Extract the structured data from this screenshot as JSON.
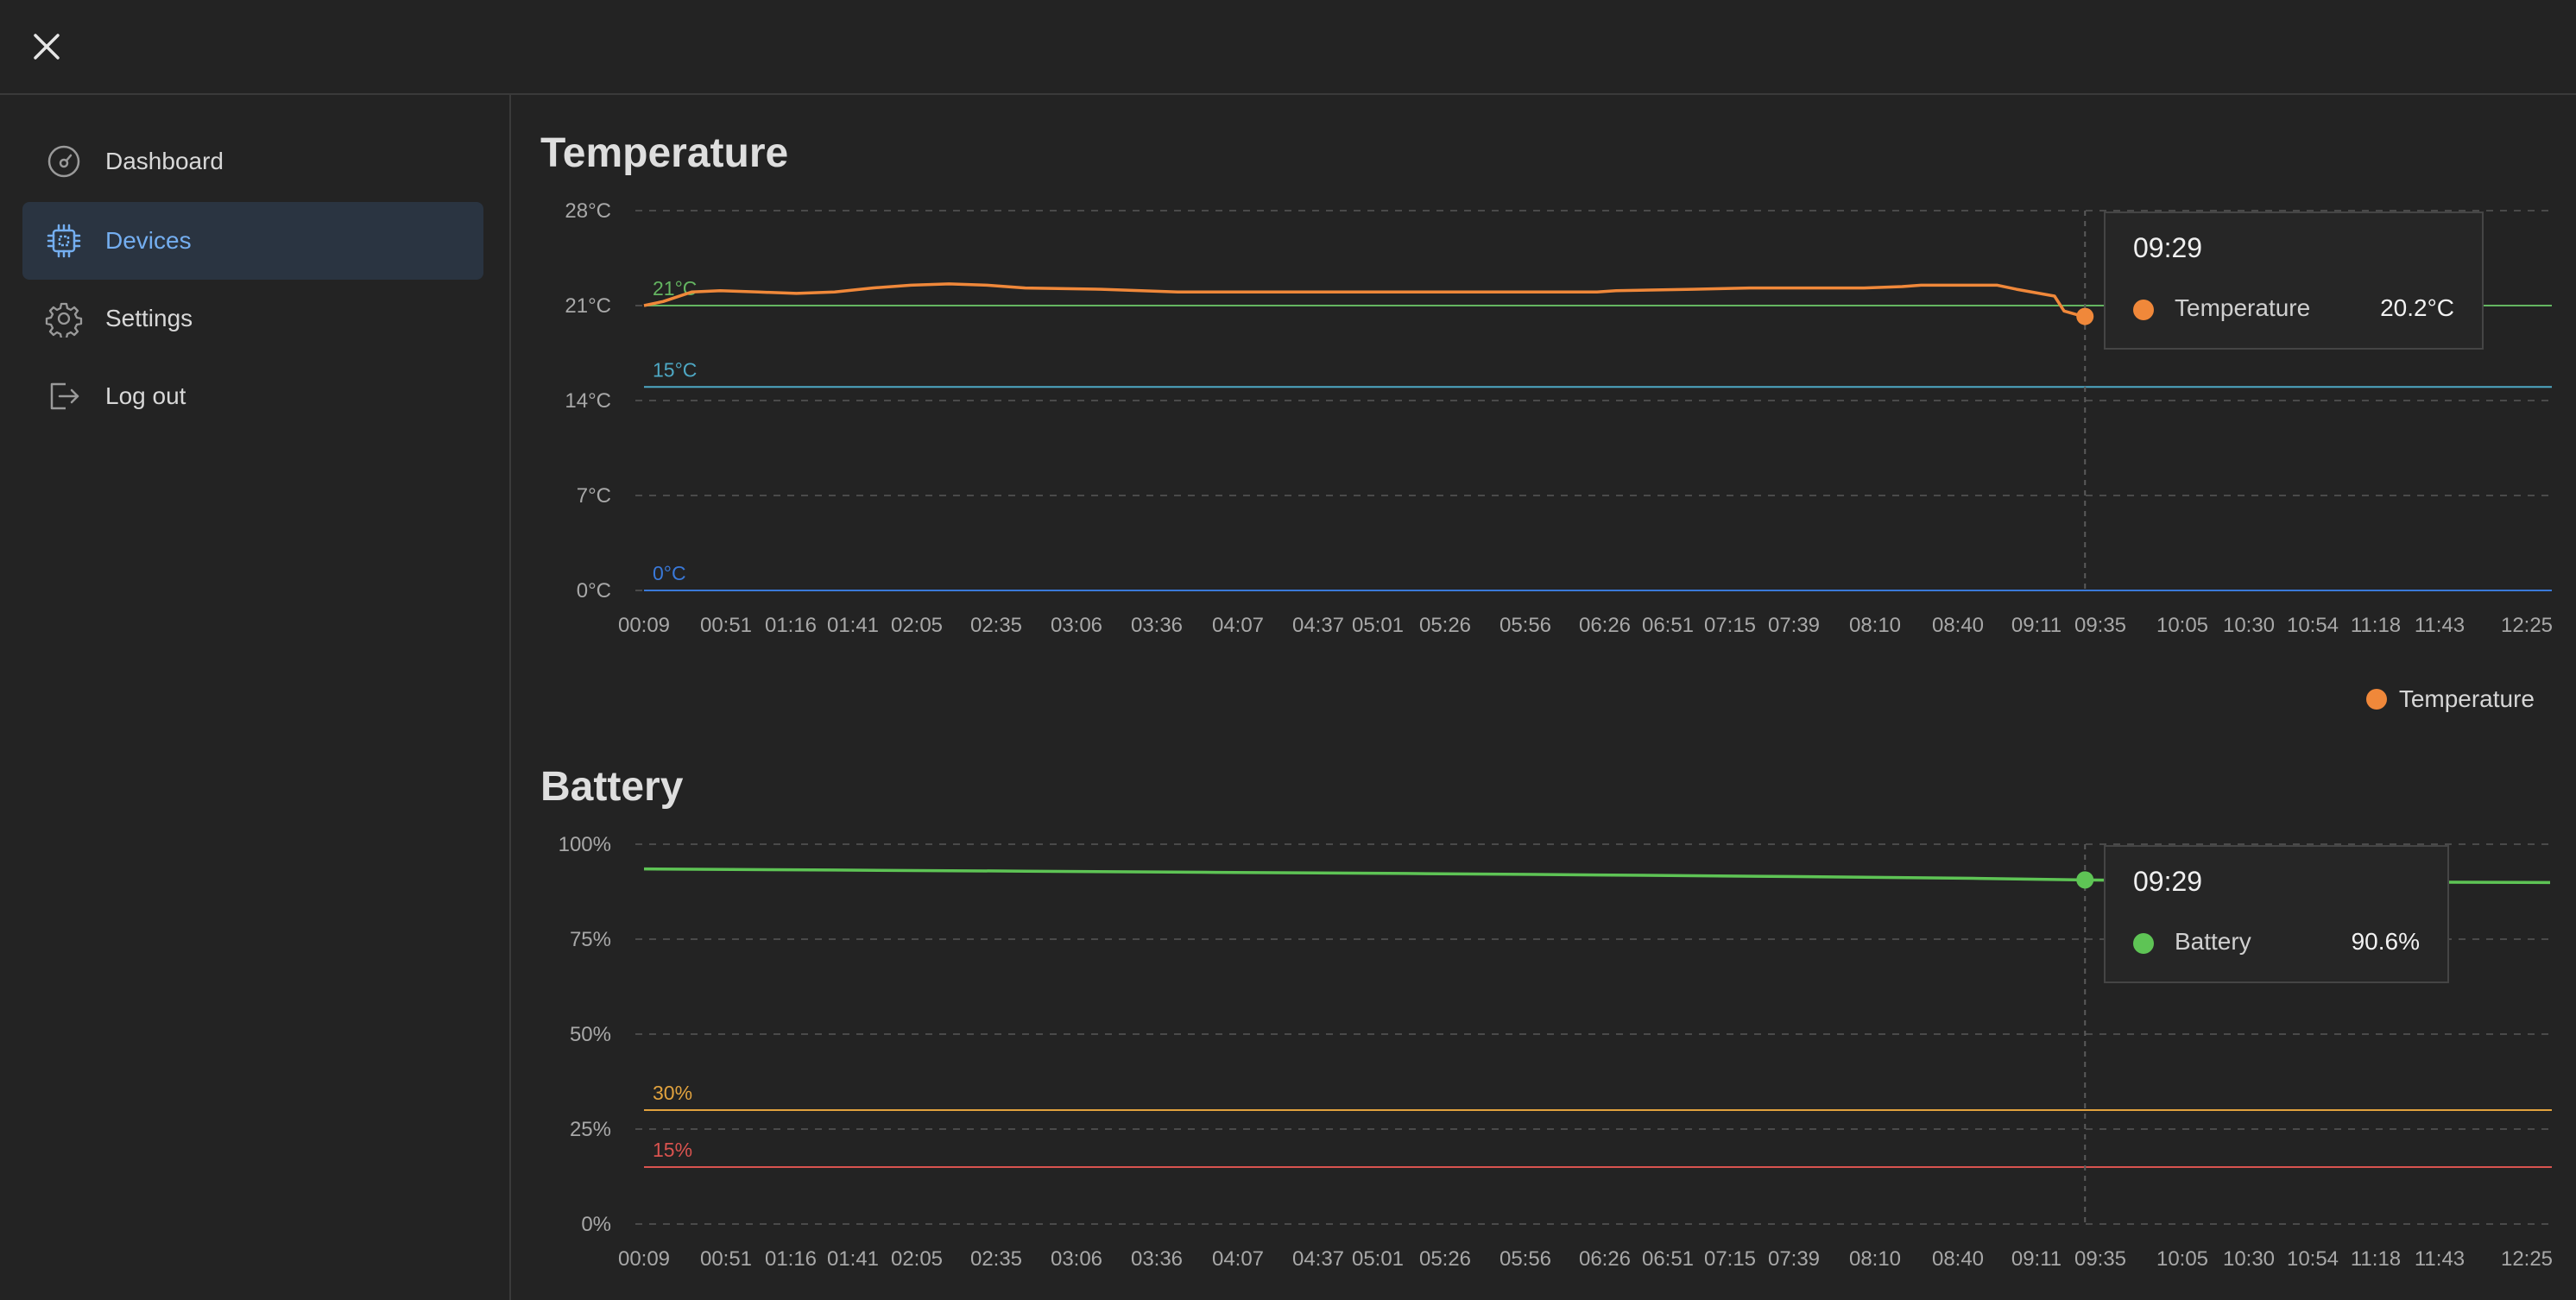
{
  "nav": {
    "items": [
      {
        "label": "Dashboard",
        "icon": "gauge-icon",
        "active": false
      },
      {
        "label": "Devices",
        "icon": "chip-icon",
        "active": true
      },
      {
        "label": "Settings",
        "icon": "gear-icon",
        "active": false
      },
      {
        "label": "Log out",
        "icon": "logout-icon",
        "active": false
      }
    ]
  },
  "colors": {
    "temperature": "#f0883a",
    "battery": "#5ec455",
    "accent": "#74aef0",
    "ref_green": "#64b561",
    "ref_teal": "#4ea8c4",
    "ref_blue": "#3a79d9",
    "ref_orange": "#e1a23e",
    "ref_red": "#d9534f"
  },
  "x_ticks": [
    "00:09",
    "00:51",
    "01:16",
    "01:41",
    "02:05",
    "02:35",
    "03:06",
    "03:36",
    "04:07",
    "04:37",
    "05:01",
    "05:26",
    "05:56",
    "06:26",
    "06:51",
    "07:15",
    "07:39",
    "08:10",
    "08:40",
    "09:11",
    "09:35",
    "10:05",
    "10:30",
    "10:54",
    "11:18",
    "11:43",
    "12:25"
  ],
  "temperature": {
    "title": "Temperature",
    "legend_label": "Temperature",
    "tooltip": {
      "time": "09:29",
      "label": "Temperature",
      "value": "20.2°C"
    }
  },
  "battery": {
    "title": "Battery",
    "tooltip": {
      "time": "09:29",
      "label": "Battery",
      "value": "90.6%"
    }
  },
  "chart_data": [
    {
      "type": "line",
      "title": "Temperature",
      "ylim": [
        0,
        28
      ],
      "y_ticks": [
        "0°C",
        "7°C",
        "14°C",
        "21°C",
        "28°C"
      ],
      "y_tick_values": [
        0,
        7,
        14,
        21,
        28
      ],
      "grid": "dashed horizontal",
      "legend": "bottom-right",
      "reference_lines": [
        {
          "label": "21°C",
          "value": 21,
          "color": "#64b561"
        },
        {
          "label": "15°C",
          "value": 15,
          "color": "#4ea8c4"
        },
        {
          "label": "0°C",
          "value": 0,
          "color": "#3a79d9"
        }
      ],
      "cursor_time": "09:29",
      "series": [
        {
          "name": "Temperature",
          "color": "#f0883a",
          "points": [
            [
              0.0,
              21.0
            ],
            [
              0.01,
              21.3
            ],
            [
              0.025,
              22.0
            ],
            [
              0.04,
              22.1
            ],
            [
              0.06,
              22.0
            ],
            [
              0.08,
              21.9
            ],
            [
              0.1,
              22.0
            ],
            [
              0.12,
              22.3
            ],
            [
              0.14,
              22.5
            ],
            [
              0.16,
              22.6
            ],
            [
              0.18,
              22.5
            ],
            [
              0.2,
              22.3
            ],
            [
              0.24,
              22.2
            ],
            [
              0.28,
              22.0
            ],
            [
              0.4,
              22.0
            ],
            [
              0.5,
              22.0
            ],
            [
              0.51,
              22.1
            ],
            [
              0.55,
              22.2
            ],
            [
              0.58,
              22.3
            ],
            [
              0.64,
              22.3
            ],
            [
              0.66,
              22.4
            ],
            [
              0.67,
              22.5
            ],
            [
              0.71,
              22.5
            ],
            [
              0.72,
              22.2
            ],
            [
              0.74,
              21.7
            ],
            [
              0.745,
              20.6
            ],
            [
              0.755,
              20.2
            ],
            [
              0.76,
              20.2
            ]
          ]
        }
      ]
    },
    {
      "type": "line",
      "title": "Battery",
      "ylim": [
        0,
        100
      ],
      "y_ticks": [
        "0%",
        "25%",
        "50%",
        "75%",
        "100%"
      ],
      "y_tick_values": [
        0,
        25,
        50,
        75,
        100
      ],
      "grid": "dashed horizontal",
      "reference_lines": [
        {
          "label": "30%",
          "value": 30,
          "color": "#e1a23e"
        },
        {
          "label": "15%",
          "value": 15,
          "color": "#d9534f"
        }
      ],
      "cursor_time": "09:29",
      "series": [
        {
          "name": "Battery",
          "color": "#5ec455",
          "points": [
            [
              0.0,
              93.5
            ],
            [
              0.1,
              93.2
            ],
            [
              0.2,
              92.9
            ],
            [
              0.3,
              92.6
            ],
            [
              0.4,
              92.3
            ],
            [
              0.5,
              91.9
            ],
            [
              0.6,
              91.5
            ],
            [
              0.7,
              91.0
            ],
            [
              0.756,
              90.6
            ],
            [
              0.8,
              90.4
            ],
            [
              0.9,
              90.1
            ],
            [
              1.0,
              89.9
            ]
          ]
        }
      ]
    }
  ]
}
